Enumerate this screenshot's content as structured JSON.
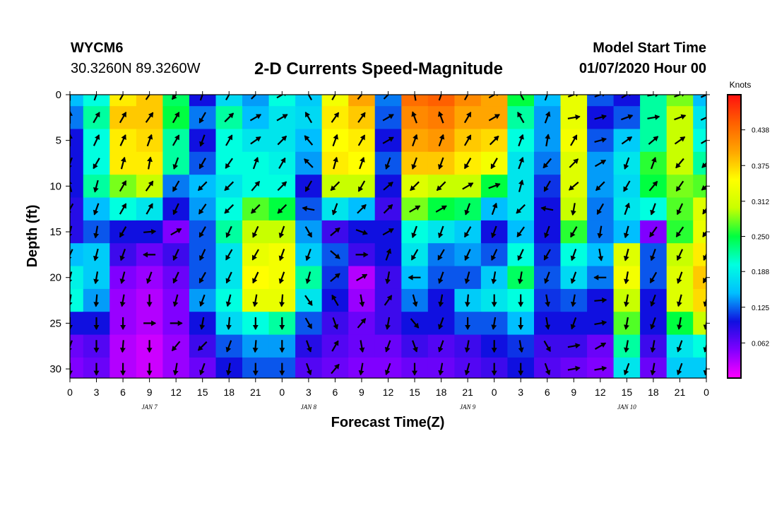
{
  "header": {
    "station": "WYCM6",
    "coordinates": "30.3260N 89.3260W",
    "title": "2-D Currents Speed-Magnitude",
    "model_start_label": "Model Start Time",
    "model_start_value": "01/07/2020 Hour 00"
  },
  "colors": {
    "colormap": [
      "#ff00ff",
      "#8000ff",
      "#1010e0",
      "#00bfff",
      "#00ffe0",
      "#00ff40",
      "#c8ff00",
      "#ffff00",
      "#ffa500",
      "#ff6000",
      "#ff1010"
    ],
    "arrow": "#000000",
    "axis": "#000000"
  },
  "chart_data": {
    "type": "heatmap",
    "title": "2-D Currents Speed-Magnitude",
    "xlabel": "Forecast Time(Z)",
    "ylabel": "Depth (ft)",
    "x_hours_range": [
      0,
      72
    ],
    "xlim": [
      0,
      72
    ],
    "ylim": [
      31,
      0
    ],
    "x_ticks": [
      {
        "hour": 0,
        "label": "0"
      },
      {
        "hour": 3,
        "label": "3"
      },
      {
        "hour": 6,
        "label": "6"
      },
      {
        "hour": 9,
        "label": "9"
      },
      {
        "hour": 12,
        "label": "12"
      },
      {
        "hour": 15,
        "label": "15"
      },
      {
        "hour": 18,
        "label": "18"
      },
      {
        "hour": 21,
        "label": "21"
      },
      {
        "hour": 24,
        "label": "0"
      },
      {
        "hour": 27,
        "label": "3"
      },
      {
        "hour": 30,
        "label": "6"
      },
      {
        "hour": 33,
        "label": "9"
      },
      {
        "hour": 36,
        "label": "12"
      },
      {
        "hour": 39,
        "label": "15"
      },
      {
        "hour": 42,
        "label": "18"
      },
      {
        "hour": 45,
        "label": "21"
      },
      {
        "hour": 48,
        "label": "0"
      },
      {
        "hour": 51,
        "label": "3"
      },
      {
        "hour": 54,
        "label": "6"
      },
      {
        "hour": 57,
        "label": "9"
      },
      {
        "hour": 60,
        "label": "12"
      },
      {
        "hour": 63,
        "label": "15"
      },
      {
        "hour": 66,
        "label": "18"
      },
      {
        "hour": 69,
        "label": "21"
      },
      {
        "hour": 72,
        "label": "0"
      }
    ],
    "date_labels": [
      {
        "hour": 9,
        "label": "JAN 7"
      },
      {
        "hour": 27,
        "label": "JAN 8"
      },
      {
        "hour": 45,
        "label": "JAN 9"
      },
      {
        "hour": 63,
        "label": "JAN 10"
      }
    ],
    "y_ticks": [
      0,
      5,
      10,
      15,
      20,
      25,
      30
    ],
    "colorbar": {
      "title": "Knots",
      "range": [
        0,
        0.5
      ],
      "ticks": [
        "0.438",
        "0.375",
        "0.312",
        "0.250",
        "0.188",
        "0.125",
        "0.062"
      ],
      "tick_values": [
        0.438,
        0.375,
        0.312,
        0.25,
        0.188,
        0.125,
        0.062
      ]
    },
    "depth_levels_ft": [
      0,
      2.5,
      5,
      7.5,
      10,
      12.5,
      15,
      17.5,
      20,
      22.5,
      25,
      27.5,
      30
    ],
    "time_columns_hour": [
      0,
      3,
      6,
      9,
      12,
      15,
      18,
      21,
      24,
      27,
      30,
      33,
      36,
      39,
      42,
      45,
      48,
      51,
      54,
      57,
      60,
      63,
      66,
      69,
      72
    ],
    "speed_knots": [
      [
        0.15,
        0.2,
        0.36,
        0.38,
        0.24,
        0.1,
        0.17,
        0.14,
        0.2,
        0.16,
        0.34,
        0.4,
        0.13,
        0.44,
        0.45,
        0.42,
        0.4,
        0.25,
        0.15,
        0.33,
        0.12,
        0.1,
        0.22,
        0.28,
        0.15
      ],
      [
        0.13,
        0.22,
        0.38,
        0.38,
        0.25,
        0.13,
        0.22,
        0.15,
        0.18,
        0.17,
        0.36,
        0.38,
        0.12,
        0.42,
        0.43,
        0.4,
        0.4,
        0.22,
        0.14,
        0.33,
        0.1,
        0.12,
        0.22,
        0.3,
        0.18
      ],
      [
        0.1,
        0.2,
        0.36,
        0.37,
        0.22,
        0.1,
        0.2,
        0.18,
        0.18,
        0.15,
        0.35,
        0.36,
        0.1,
        0.4,
        0.41,
        0.38,
        0.37,
        0.2,
        0.14,
        0.34,
        0.12,
        0.16,
        0.22,
        0.3,
        0.2
      ],
      [
        0.1,
        0.2,
        0.36,
        0.36,
        0.22,
        0.12,
        0.2,
        0.2,
        0.19,
        0.14,
        0.36,
        0.35,
        0.12,
        0.38,
        0.38,
        0.36,
        0.34,
        0.18,
        0.13,
        0.32,
        0.14,
        0.18,
        0.26,
        0.3,
        0.22
      ],
      [
        0.1,
        0.22,
        0.28,
        0.3,
        0.13,
        0.15,
        0.18,
        0.2,
        0.2,
        0.1,
        0.3,
        0.3,
        0.1,
        0.32,
        0.3,
        0.3,
        0.25,
        0.18,
        0.11,
        0.32,
        0.14,
        0.17,
        0.25,
        0.28,
        0.27
      ],
      [
        0.09,
        0.15,
        0.2,
        0.18,
        0.1,
        0.14,
        0.2,
        0.27,
        0.25,
        0.12,
        0.18,
        0.15,
        0.08,
        0.28,
        0.25,
        0.24,
        0.15,
        0.18,
        0.1,
        0.3,
        0.13,
        0.18,
        0.2,
        0.27,
        0.32
      ],
      [
        0.09,
        0.12,
        0.1,
        0.1,
        0.05,
        0.12,
        0.22,
        0.3,
        0.3,
        0.14,
        0.08,
        0.1,
        0.1,
        0.2,
        0.18,
        0.16,
        0.1,
        0.15,
        0.1,
        0.26,
        0.13,
        0.15,
        0.05,
        0.26,
        0.33
      ],
      [
        0.15,
        0.16,
        0.08,
        0.06,
        0.08,
        0.12,
        0.18,
        0.33,
        0.34,
        0.16,
        0.12,
        0.08,
        0.1,
        0.18,
        0.13,
        0.14,
        0.12,
        0.2,
        0.11,
        0.2,
        0.15,
        0.32,
        0.12,
        0.3,
        0.36
      ],
      [
        0.19,
        0.16,
        0.05,
        0.04,
        0.06,
        0.12,
        0.18,
        0.35,
        0.34,
        0.22,
        0.11,
        0.03,
        0.08,
        0.15,
        0.12,
        0.12,
        0.16,
        0.24,
        0.12,
        0.17,
        0.13,
        0.34,
        0.12,
        0.32,
        0.38
      ],
      [
        0.2,
        0.14,
        0.04,
        0.03,
        0.05,
        0.14,
        0.2,
        0.33,
        0.33,
        0.18,
        0.1,
        0.04,
        0.08,
        0.13,
        0.1,
        0.16,
        0.18,
        0.2,
        0.11,
        0.12,
        0.1,
        0.3,
        0.1,
        0.32,
        0.37
      ],
      [
        0.1,
        0.1,
        0.04,
        0.03,
        0.05,
        0.1,
        0.17,
        0.2,
        0.22,
        0.12,
        0.08,
        0.06,
        0.08,
        0.1,
        0.1,
        0.12,
        0.12,
        0.15,
        0.1,
        0.1,
        0.1,
        0.27,
        0.1,
        0.25,
        0.3
      ],
      [
        0.06,
        0.07,
        0.03,
        0.02,
        0.04,
        0.08,
        0.12,
        0.14,
        0.14,
        0.09,
        0.07,
        0.06,
        0.06,
        0.08,
        0.07,
        0.08,
        0.1,
        0.11,
        0.08,
        0.08,
        0.06,
        0.22,
        0.08,
        0.18,
        0.2
      ],
      [
        0.05,
        0.06,
        0.03,
        0.02,
        0.04,
        0.06,
        0.1,
        0.12,
        0.12,
        0.07,
        0.06,
        0.05,
        0.05,
        0.06,
        0.06,
        0.07,
        0.08,
        0.1,
        0.07,
        0.06,
        0.05,
        0.18,
        0.06,
        0.16,
        0.16
      ]
    ],
    "arrow_dir_deg": [
      [
        0,
        20,
        30,
        35,
        220,
        20,
        30,
        45,
        60,
        330,
        30,
        40,
        45,
        350,
        20,
        30,
        60,
        330,
        20,
        70,
        70,
        60,
        80,
        70,
        65
      ],
      [
        0,
        30,
        30,
        35,
        30,
        210,
        45,
        60,
        60,
        330,
        35,
        35,
        60,
        340,
        340,
        30,
        60,
        330,
        20,
        80,
        75,
        70,
        80,
        70,
        65
      ],
      [
        0,
        25,
        25,
        20,
        30,
        200,
        30,
        55,
        45,
        320,
        20,
        30,
        60,
        20,
        20,
        30,
        45,
        20,
        10,
        30,
        75,
        55,
        50,
        55,
        60
      ],
      [
        200,
        210,
        15,
        10,
        200,
        210,
        215,
        20,
        30,
        315,
        15,
        20,
        200,
        200,
        200,
        210,
        210,
        20,
        220,
        45,
        60,
        200,
        20,
        220,
        225
      ],
      [
        345,
        195,
        30,
        35,
        210,
        225,
        225,
        40,
        45,
        210,
        225,
        210,
        50,
        225,
        225,
        60,
        70,
        15,
        210,
        230,
        225,
        210,
        40,
        215,
        230
      ],
      [
        210,
        200,
        30,
        30,
        205,
        215,
        225,
        225,
        225,
        280,
        200,
        45,
        45,
        60,
        60,
        200,
        20,
        225,
        280,
        190,
        210,
        20,
        200,
        205,
        215
      ],
      [
        195,
        190,
        210,
        85,
        60,
        210,
        205,
        205,
        200,
        150,
        50,
        110,
        60,
        200,
        200,
        210,
        200,
        215,
        200,
        210,
        190,
        195,
        215,
        215,
        215
      ],
      [
        205,
        195,
        200,
        270,
        205,
        205,
        210,
        210,
        200,
        200,
        130,
        90,
        20,
        210,
        210,
        205,
        205,
        205,
        210,
        200,
        170,
        195,
        200,
        205,
        205
      ],
      [
        195,
        190,
        195,
        200,
        205,
        210,
        205,
        205,
        200,
        195,
        50,
        60,
        190,
        270,
        200,
        195,
        190,
        190,
        200,
        200,
        270,
        190,
        210,
        200,
        210
      ],
      [
        190,
        185,
        190,
        180,
        195,
        200,
        195,
        190,
        185,
        145,
        330,
        170,
        35,
        165,
        190,
        185,
        180,
        180,
        170,
        190,
        85,
        190,
        200,
        195,
        195
      ],
      [
        180,
        180,
        180,
        90,
        90,
        190,
        185,
        180,
        180,
        150,
        160,
        40,
        190,
        140,
        200,
        180,
        190,
        180,
        170,
        200,
        80,
        190,
        200,
        190,
        190
      ],
      [
        200,
        180,
        185,
        180,
        220,
        225,
        200,
        185,
        180,
        160,
        30,
        170,
        200,
        160,
        200,
        190,
        180,
        170,
        150,
        80,
        60,
        190,
        190,
        200,
        195
      ],
      [
        180,
        180,
        180,
        180,
        190,
        200,
        190,
        180,
        180,
        160,
        40,
        190,
        200,
        180,
        190,
        195,
        180,
        180,
        160,
        80,
        80,
        200,
        190,
        200,
        190
      ]
    ]
  }
}
